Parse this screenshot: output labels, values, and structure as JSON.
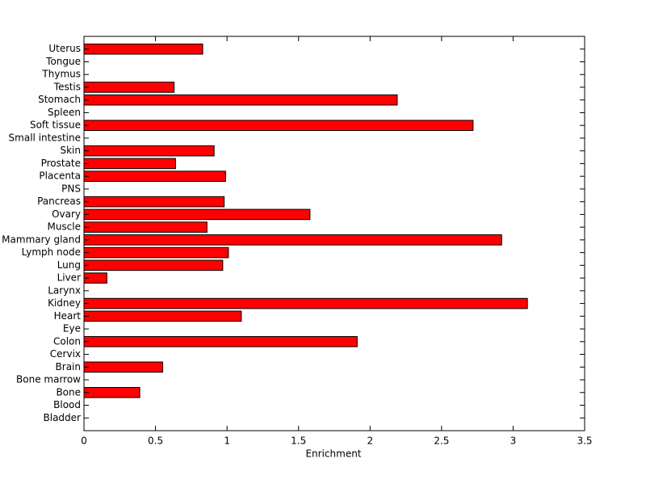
{
  "chart_data": {
    "type": "hbar",
    "xlabel": "Enrichment",
    "categories": [
      "Bladder",
      "Blood",
      "Bone",
      "Bone marrow",
      "Brain",
      "Cervix",
      "Colon",
      "Eye",
      "Heart",
      "Kidney",
      "Larynx",
      "Liver",
      "Lung",
      "Lymph node",
      "Mammary gland",
      "Muscle",
      "Ovary",
      "Pancreas",
      "PNS",
      "Placenta",
      "Prostate",
      "Skin",
      "Small intestine",
      "Soft tissue",
      "Spleen",
      "Stomach",
      "Testis",
      "Thymus",
      "Tongue",
      "Uterus"
    ],
    "values": [
      0,
      0,
      0.39,
      0,
      0.55,
      0,
      1.91,
      0,
      1.1,
      3.1,
      0,
      0.16,
      0.97,
      1.01,
      2.92,
      0.86,
      1.58,
      0.98,
      0,
      0.99,
      0.64,
      0.91,
      0,
      2.72,
      0,
      2.19,
      0.63,
      0,
      0,
      0.83
    ],
    "color": "#ff0000",
    "xlim": [
      0,
      3.5
    ],
    "xticks": [
      0,
      0.5,
      1,
      1.5,
      2,
      2.5,
      3,
      3.5
    ]
  }
}
